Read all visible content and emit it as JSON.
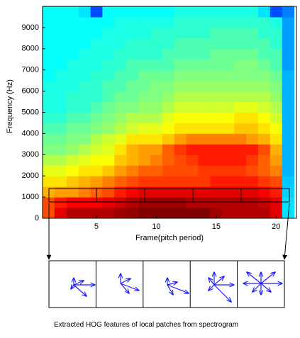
{
  "chart_data": {
    "type": "heatmap",
    "xlabel": "Frame(pitch period)",
    "ylabel": "Frequency (Hz)",
    "x": [
      1,
      2,
      3,
      4,
      5,
      6,
      7,
      8,
      9,
      10,
      11,
      12,
      13,
      14,
      15,
      16,
      17,
      18,
      19,
      20,
      21
    ],
    "ybins": [
      0,
      500,
      1000,
      1500,
      2000,
      2500,
      3000,
      3500,
      4000,
      4500,
      5000,
      5500,
      6000,
      6500,
      7000,
      7500,
      8000,
      8500,
      9000,
      9500,
      10000
    ],
    "xlim": [
      0.5,
      21.7
    ],
    "ylim": [
      0,
      10000
    ],
    "xticks": [
      5,
      10,
      15,
      20
    ],
    "yticks": [
      0,
      1000,
      2000,
      3000,
      4000,
      5000,
      6000,
      7000,
      8000,
      9000
    ],
    "z": [
      [
        0.8,
        0.9,
        0.95,
        0.95,
        0.95,
        0.95,
        0.97,
        0.98,
        1,
        1,
        1,
        1,
        1,
        1,
        0.97,
        0.95,
        0.95,
        0.95,
        0.95,
        0.9,
        0.35
      ],
      [
        0.8,
        0.85,
        0.88,
        0.88,
        0.88,
        0.9,
        0.92,
        0.95,
        0.97,
        0.97,
        0.97,
        0.97,
        0.95,
        0.95,
        0.95,
        0.95,
        0.95,
        0.95,
        0.93,
        0.9,
        0.35
      ],
      [
        0.7,
        0.72,
        0.72,
        0.75,
        0.78,
        0.8,
        0.85,
        0.88,
        0.9,
        0.9,
        0.9,
        0.9,
        0.9,
        0.9,
        0.9,
        0.9,
        0.9,
        0.9,
        0.88,
        0.85,
        0.33
      ],
      [
        0.65,
        0.65,
        0.68,
        0.7,
        0.72,
        0.75,
        0.78,
        0.8,
        0.82,
        0.82,
        0.82,
        0.82,
        0.82,
        0.82,
        0.85,
        0.85,
        0.85,
        0.85,
        0.82,
        0.8,
        0.32
      ],
      [
        0.6,
        0.6,
        0.62,
        0.65,
        0.65,
        0.68,
        0.72,
        0.75,
        0.78,
        0.78,
        0.8,
        0.8,
        0.8,
        0.82,
        0.82,
        0.82,
        0.82,
        0.8,
        0.78,
        0.75,
        0.3
      ],
      [
        0.55,
        0.55,
        0.58,
        0.6,
        0.62,
        0.62,
        0.68,
        0.7,
        0.72,
        0.75,
        0.78,
        0.8,
        0.82,
        0.85,
        0.85,
        0.85,
        0.85,
        0.82,
        0.78,
        0.72,
        0.3
      ],
      [
        0.5,
        0.5,
        0.52,
        0.55,
        0.58,
        0.6,
        0.65,
        0.7,
        0.72,
        0.72,
        0.78,
        0.82,
        0.85,
        0.85,
        0.85,
        0.85,
        0.85,
        0.85,
        0.8,
        0.7,
        0.3
      ],
      [
        0.48,
        0.48,
        0.5,
        0.5,
        0.55,
        0.58,
        0.6,
        0.65,
        0.65,
        0.65,
        0.68,
        0.72,
        0.75,
        0.75,
        0.75,
        0.75,
        0.75,
        0.72,
        0.7,
        0.65,
        0.3
      ],
      [
        0.45,
        0.45,
        0.48,
        0.48,
        0.5,
        0.52,
        0.55,
        0.58,
        0.6,
        0.6,
        0.62,
        0.65,
        0.65,
        0.65,
        0.65,
        0.65,
        0.68,
        0.68,
        0.65,
        0.62,
        0.3
      ],
      [
        0.42,
        0.42,
        0.45,
        0.45,
        0.48,
        0.5,
        0.52,
        0.55,
        0.55,
        0.55,
        0.6,
        0.62,
        0.62,
        0.62,
        0.62,
        0.62,
        0.65,
        0.65,
        0.62,
        0.58,
        0.3
      ],
      [
        0.4,
        0.4,
        0.42,
        0.42,
        0.45,
        0.48,
        0.5,
        0.5,
        0.52,
        0.52,
        0.55,
        0.58,
        0.58,
        0.58,
        0.58,
        0.58,
        0.6,
        0.6,
        0.58,
        0.55,
        0.3
      ],
      [
        0.4,
        0.4,
        0.42,
        0.42,
        0.42,
        0.45,
        0.48,
        0.48,
        0.5,
        0.5,
        0.52,
        0.55,
        0.55,
        0.55,
        0.55,
        0.55,
        0.55,
        0.55,
        0.55,
        0.52,
        0.3
      ],
      [
        0.4,
        0.4,
        0.4,
        0.42,
        0.42,
        0.45,
        0.45,
        0.48,
        0.48,
        0.5,
        0.5,
        0.52,
        0.52,
        0.52,
        0.52,
        0.52,
        0.52,
        0.52,
        0.52,
        0.5,
        0.3
      ],
      [
        0.38,
        0.4,
        0.4,
        0.4,
        0.42,
        0.42,
        0.45,
        0.45,
        0.48,
        0.48,
        0.48,
        0.5,
        0.5,
        0.5,
        0.5,
        0.5,
        0.5,
        0.5,
        0.5,
        0.48,
        0.3
      ],
      [
        0.38,
        0.38,
        0.4,
        0.4,
        0.4,
        0.42,
        0.42,
        0.45,
        0.45,
        0.45,
        0.45,
        0.48,
        0.48,
        0.48,
        0.48,
        0.48,
        0.5,
        0.5,
        0.48,
        0.45,
        0.28
      ],
      [
        0.38,
        0.38,
        0.38,
        0.4,
        0.4,
        0.4,
        0.42,
        0.42,
        0.42,
        0.42,
        0.45,
        0.45,
        0.45,
        0.45,
        0.48,
        0.48,
        0.48,
        0.48,
        0.45,
        0.45,
        0.28
      ],
      [
        0.38,
        0.38,
        0.38,
        0.38,
        0.4,
        0.4,
        0.4,
        0.42,
        0.42,
        0.42,
        0.42,
        0.45,
        0.45,
        0.45,
        0.45,
        0.45,
        0.45,
        0.45,
        0.45,
        0.42,
        0.28
      ],
      [
        0.38,
        0.38,
        0.38,
        0.38,
        0.38,
        0.4,
        0.4,
        0.4,
        0.4,
        0.42,
        0.42,
        0.42,
        0.42,
        0.42,
        0.45,
        0.45,
        0.45,
        0.45,
        0.42,
        0.42,
        0.28
      ],
      [
        0.38,
        0.38,
        0.38,
        0.38,
        0.38,
        0.38,
        0.4,
        0.4,
        0.4,
        0.4,
        0.4,
        0.42,
        0.42,
        0.42,
        0.42,
        0.42,
        0.42,
        0.42,
        0.42,
        0.4,
        0.28
      ],
      [
        0.38,
        0.38,
        0.38,
        0.35,
        0.2,
        0.38,
        0.38,
        0.38,
        0.38,
        0.38,
        0.38,
        0.4,
        0.4,
        0.4,
        0.4,
        0.4,
        0.4,
        0.4,
        0.35,
        0.2,
        0.25
      ]
    ]
  },
  "caption": "Extracted HOG features of local patches from spectrogram"
}
